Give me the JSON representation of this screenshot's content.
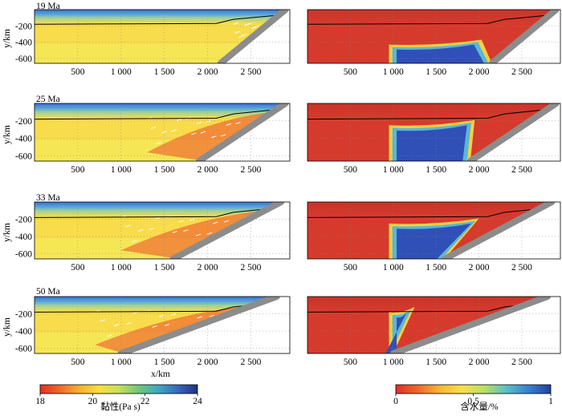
{
  "chart_data": {
    "type": "heatmap",
    "panel_axes": {
      "ylabel": "y/km",
      "xlabel_bottom": "x/km",
      "x_ticks": [
        "500",
        "1 000",
        "1 500",
        "2 000",
        "2 500"
      ],
      "x_tick_values": [
        500,
        1000,
        1500,
        2000,
        2500
      ],
      "y_ticks": [
        "-200",
        "-400",
        "-600"
      ],
      "y_tick_values": [
        -200,
        -400,
        -600
      ],
      "xlim": [
        0,
        2950
      ],
      "ylim": [
        -660,
        0
      ]
    },
    "rows": [
      {
        "label": "19 Ma",
        "wedge_x_at_top": 2900,
        "wedge_x_at_bottom": 2150,
        "front_x": 2030,
        "back_x": 950,
        "weak_left": 2300,
        "weak_right": 2850
      },
      {
        "label": "25 Ma",
        "wedge_x_at_top": 2900,
        "wedge_x_at_bottom": 1900,
        "front_x": 1950,
        "back_x": 950,
        "weak_left": 1300,
        "weak_right": 2850
      },
      {
        "label": "33 Ma",
        "wedge_x_at_top": 2850,
        "wedge_x_at_bottom": 1600,
        "front_x": 2000,
        "back_x": 950,
        "weak_left": 1000,
        "weak_right": 2800
      },
      {
        "label": "50 Ma",
        "wedge_x_at_top": 2800,
        "wedge_x_at_bottom": 1000,
        "front_x": 950,
        "back_x": 950,
        "weak_left": 700,
        "weak_right": 2700
      }
    ],
    "colorbars": [
      {
        "label": "黏性(Pa s)",
        "ticks": [
          "18",
          "20",
          "22",
          "24"
        ],
        "range": [
          18,
          24
        ],
        "colors": [
          "#e03020",
          "#f06828",
          "#f8b030",
          "#f8e040",
          "#c8e058",
          "#70c878",
          "#40a8c0",
          "#3868c0",
          "#203080"
        ]
      },
      {
        "label": "含水量/%",
        "ticks": [
          "0",
          "0.5",
          "1"
        ],
        "range": [
          0,
          1
        ],
        "colors": [
          "#e03028",
          "#f06828",
          "#f8b838",
          "#f8e048",
          "#b8e068",
          "#58c0c8",
          "#3880d0",
          "#2040a0"
        ]
      }
    ],
    "grid": true
  },
  "colors": {
    "viscosity_top": "#3a6ed0",
    "viscosity_mantle": "#f8dc4c",
    "viscosity_weak": "#ec4a28",
    "water_dry": "#d63a2c",
    "water_wet": "#3050b8",
    "slab_gray": "#8c8c8c"
  }
}
